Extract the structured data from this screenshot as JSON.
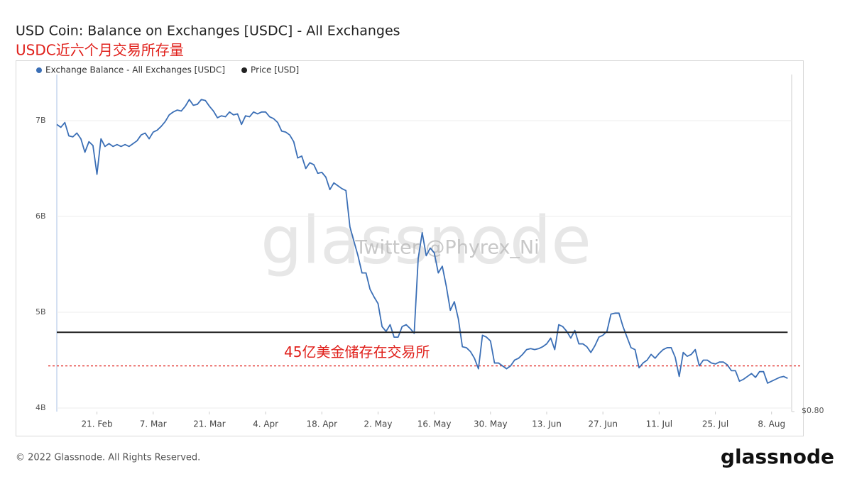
{
  "chart_data": {
    "type": "line",
    "title": "USD Coin: Balance on Exchanges [USDC] - All Exchanges",
    "subtitle": "USDC近六个月交易所存量",
    "x": [
      0,
      1,
      2,
      3,
      4,
      5,
      6,
      7,
      8,
      9,
      10,
      11,
      12,
      13,
      14,
      15,
      16,
      17,
      18,
      19,
      20,
      21,
      22,
      23,
      24,
      25,
      26,
      27,
      28,
      29,
      30,
      31,
      32,
      33,
      34,
      35,
      36,
      37,
      38,
      39,
      40,
      41,
      42,
      43,
      44,
      45,
      46,
      47,
      48,
      49,
      50,
      51,
      52,
      53,
      54,
      55,
      56,
      57,
      58,
      59,
      60,
      61,
      62,
      63,
      64,
      65,
      66,
      67,
      68,
      69,
      70,
      71,
      72,
      73,
      74,
      75,
      76,
      77,
      78,
      79,
      80,
      81,
      82,
      83,
      84,
      85,
      86,
      87,
      88,
      89,
      90,
      91,
      92,
      93,
      94,
      95,
      96,
      97,
      98,
      99,
      100,
      101,
      102,
      103,
      104,
      105,
      106,
      107,
      108,
      109,
      110,
      111,
      112,
      113,
      114,
      115,
      116,
      117,
      118,
      119,
      120,
      121,
      122,
      123,
      124,
      125,
      126,
      127,
      128,
      129,
      130,
      131,
      132,
      133,
      134,
      135,
      136,
      137,
      138,
      139,
      140,
      141,
      142,
      143,
      144,
      145,
      146,
      147,
      148,
      149,
      150,
      151,
      152,
      153,
      154,
      155,
      156,
      157,
      158,
      159,
      160,
      161,
      162,
      163,
      164,
      165,
      166,
      167,
      168,
      169,
      170,
      171,
      172,
      173,
      174,
      175,
      176,
      177,
      178,
      179,
      180,
      181,
      182
    ],
    "series": [
      {
        "name": "Exchange Balance - All Exchanges [USDC]",
        "color": "#3b6fb6",
        "values": [
          6960000000.0,
          6930000000.0,
          6980000000.0,
          6840000000.0,
          6830000000.0,
          6870000000.0,
          6810000000.0,
          6670000000.0,
          6780000000.0,
          6740000000.0,
          6440000000.0,
          6810000000.0,
          6730000000.0,
          6760000000.0,
          6730000000.0,
          6750000000.0,
          6730000000.0,
          6750000000.0,
          6730000000.0,
          6760000000.0,
          6790000000.0,
          6850000000.0,
          6870000000.0,
          6810000000.0,
          6880000000.0,
          6900000000.0,
          6940000000.0,
          6990000000.0,
          7060000000.0,
          7090000000.0,
          7110000000.0,
          7100000000.0,
          7150000000.0,
          7220000000.0,
          7160000000.0,
          7170000000.0,
          7220000000.0,
          7210000000.0,
          7150000000.0,
          7100000000.0,
          7030000000.0,
          7050000000.0,
          7040000000.0,
          7090000000.0,
          7060000000.0,
          7070000000.0,
          6960000000.0,
          7050000000.0,
          7040000000.0,
          7090000000.0,
          7070000000.0,
          7090000000.0,
          7090000000.0,
          7040000000.0,
          7020000000.0,
          6980000000.0,
          6890000000.0,
          6880000000.0,
          6850000000.0,
          6780000000.0,
          6610000000.0,
          6630000000.0,
          6500000000.0,
          6560000000.0,
          6540000000.0,
          6450000000.0,
          6460000000.0,
          6410000000.0,
          6280000000.0,
          6350000000.0,
          6320000000.0,
          6290000000.0,
          6270000000.0,
          5890000000.0,
          5740000000.0,
          5590000000.0,
          5410000000.0,
          5410000000.0,
          5240000000.0,
          5160000000.0,
          5090000000.0,
          4850000000.0,
          4800000000.0,
          4870000000.0,
          4740000000.0,
          4740000000.0,
          4850000000.0,
          4870000000.0,
          4830000000.0,
          4780000000.0,
          5560000000.0,
          5830000000.0,
          5590000000.0,
          5670000000.0,
          5620000000.0,
          5410000000.0,
          5480000000.0,
          5270000000.0,
          5020000000.0,
          5110000000.0,
          4930000000.0,
          4640000000.0,
          4630000000.0,
          4590000000.0,
          4520000000.0,
          4410000000.0,
          4760000000.0,
          4740000000.0,
          4700000000.0,
          4470000000.0,
          4470000000.0,
          4440000000.0,
          4410000000.0,
          4440000000.0,
          4500000000.0,
          4520000000.0,
          4560000000.0,
          4610000000.0,
          4620000000.0,
          4610000000.0,
          4620000000.0,
          4640000000.0,
          4670000000.0,
          4730000000.0,
          4610000000.0,
          4870000000.0,
          4850000000.0,
          4800000000.0,
          4730000000.0,
          4810000000.0,
          4670000000.0,
          4670000000.0,
          4640000000.0,
          4580000000.0,
          4650000000.0,
          4740000000.0,
          4760000000.0,
          4800000000.0,
          4980000000.0,
          4990000000.0,
          4990000000.0,
          4850000000.0,
          4740000000.0,
          4630000000.0,
          4610000000.0,
          4420000000.0,
          4470000000.0,
          4500000000.0,
          4560000000.0,
          4520000000.0,
          4570000000.0,
          4610000000.0,
          4630000000.0,
          4630000000.0,
          4530000000.0,
          4330000000.0,
          4580000000.0,
          4540000000.0,
          4560000000.0,
          4610000000.0,
          4440000000.0,
          4500000000.0,
          4500000000.0,
          4470000000.0,
          4460000000.0,
          4480000000.0,
          4480000000.0,
          4450000000.0,
          4390000000.0,
          4390000000.0,
          4280000000.0,
          4300000000.0,
          4330000000.0,
          4360000000.0,
          4320000000.0,
          4380000000.0,
          4380000000.0,
          4260000000.0,
          4280000000.0,
          4300000000.0,
          4320000000.0,
          4330000000.0,
          4310000000.0
        ]
      },
      {
        "name": "Price [USD]",
        "color": "#222222",
        "axis": "y2",
        "values": [
          1,
          1,
          1,
          1,
          1,
          1,
          1,
          1,
          1,
          1,
          1,
          1,
          1,
          1,
          1,
          1,
          1,
          1,
          1,
          1,
          1,
          1,
          1,
          1,
          1,
          1,
          1,
          1,
          1,
          1,
          1,
          1,
          1,
          1,
          1,
          1,
          1,
          1,
          1,
          1,
          1,
          1,
          1,
          1,
          1,
          1,
          1,
          1,
          1,
          1,
          1,
          1,
          1,
          1,
          1,
          1,
          1,
          1,
          1,
          1,
          1,
          1,
          1,
          1,
          1,
          1,
          1,
          1,
          1,
          1,
          1,
          1,
          1,
          1,
          1,
          1,
          1,
          1,
          1,
          1,
          1,
          1,
          1,
          1,
          1,
          1,
          1,
          1,
          1,
          1,
          1,
          1,
          1,
          1,
          1,
          1,
          1,
          1,
          1,
          1,
          1,
          1,
          1,
          1,
          1,
          1,
          1,
          1,
          1,
          1,
          1,
          1,
          1,
          1,
          1,
          1,
          1,
          1,
          1,
          1,
          1,
          1,
          1,
          1,
          1,
          1,
          1,
          1,
          1,
          1,
          1,
          1,
          1,
          1,
          1,
          1,
          1,
          1,
          1,
          1,
          1,
          1,
          1,
          1,
          1,
          1,
          1,
          1,
          1,
          1,
          1,
          1,
          1,
          1,
          1,
          1,
          1,
          1,
          1,
          1,
          1,
          1,
          1,
          1,
          1,
          1,
          1,
          1,
          1,
          1,
          1,
          1,
          1,
          1,
          1,
          1,
          1,
          1,
          1,
          1,
          1,
          1,
          1
        ]
      }
    ],
    "xlim": [
      0,
      183
    ],
    "xticks": [
      {
        "value": 10,
        "label": "21. Feb"
      },
      {
        "value": 24,
        "label": "7. Mar"
      },
      {
        "value": 38,
        "label": "21. Mar"
      },
      {
        "value": 52,
        "label": "4. Apr"
      },
      {
        "value": 66,
        "label": "18. Apr"
      },
      {
        "value": 80,
        "label": "2. May"
      },
      {
        "value": 94,
        "label": "16. May"
      },
      {
        "value": 108,
        "label": "30. May"
      },
      {
        "value": 122,
        "label": "13. Jun"
      },
      {
        "value": 136,
        "label": "27. Jun"
      },
      {
        "value": 150,
        "label": "11. Jul"
      },
      {
        "value": 164,
        "label": "25. Jul"
      },
      {
        "value": 178,
        "label": "8. Aug"
      }
    ],
    "ylim": [
      3963000000.0,
      7481000000.0
    ],
    "yticks": [
      {
        "value": 4000000000.0,
        "label": "4B"
      },
      {
        "value": 5000000000.0,
        "label": "5B"
      },
      {
        "value": 6000000000.0,
        "label": "6B"
      },
      {
        "value": 7000000000.0,
        "label": "7B"
      }
    ],
    "y2lim": [
      0.8,
      1.65
    ],
    "y2ticks": [
      {
        "value": 0.8,
        "label": "$0.80"
      }
    ],
    "grid": true,
    "legend": "top-left",
    "annotation": {
      "text": "45亿美金储存在交易所",
      "value": 4440000000.0,
      "color": "#e0201b"
    },
    "watermark": "glassnode",
    "credit": "Twitter @Phyrex_Ni",
    "footer": "© 2022 Glassnode. All Rights Reserved.",
    "logo": "glassnode"
  }
}
